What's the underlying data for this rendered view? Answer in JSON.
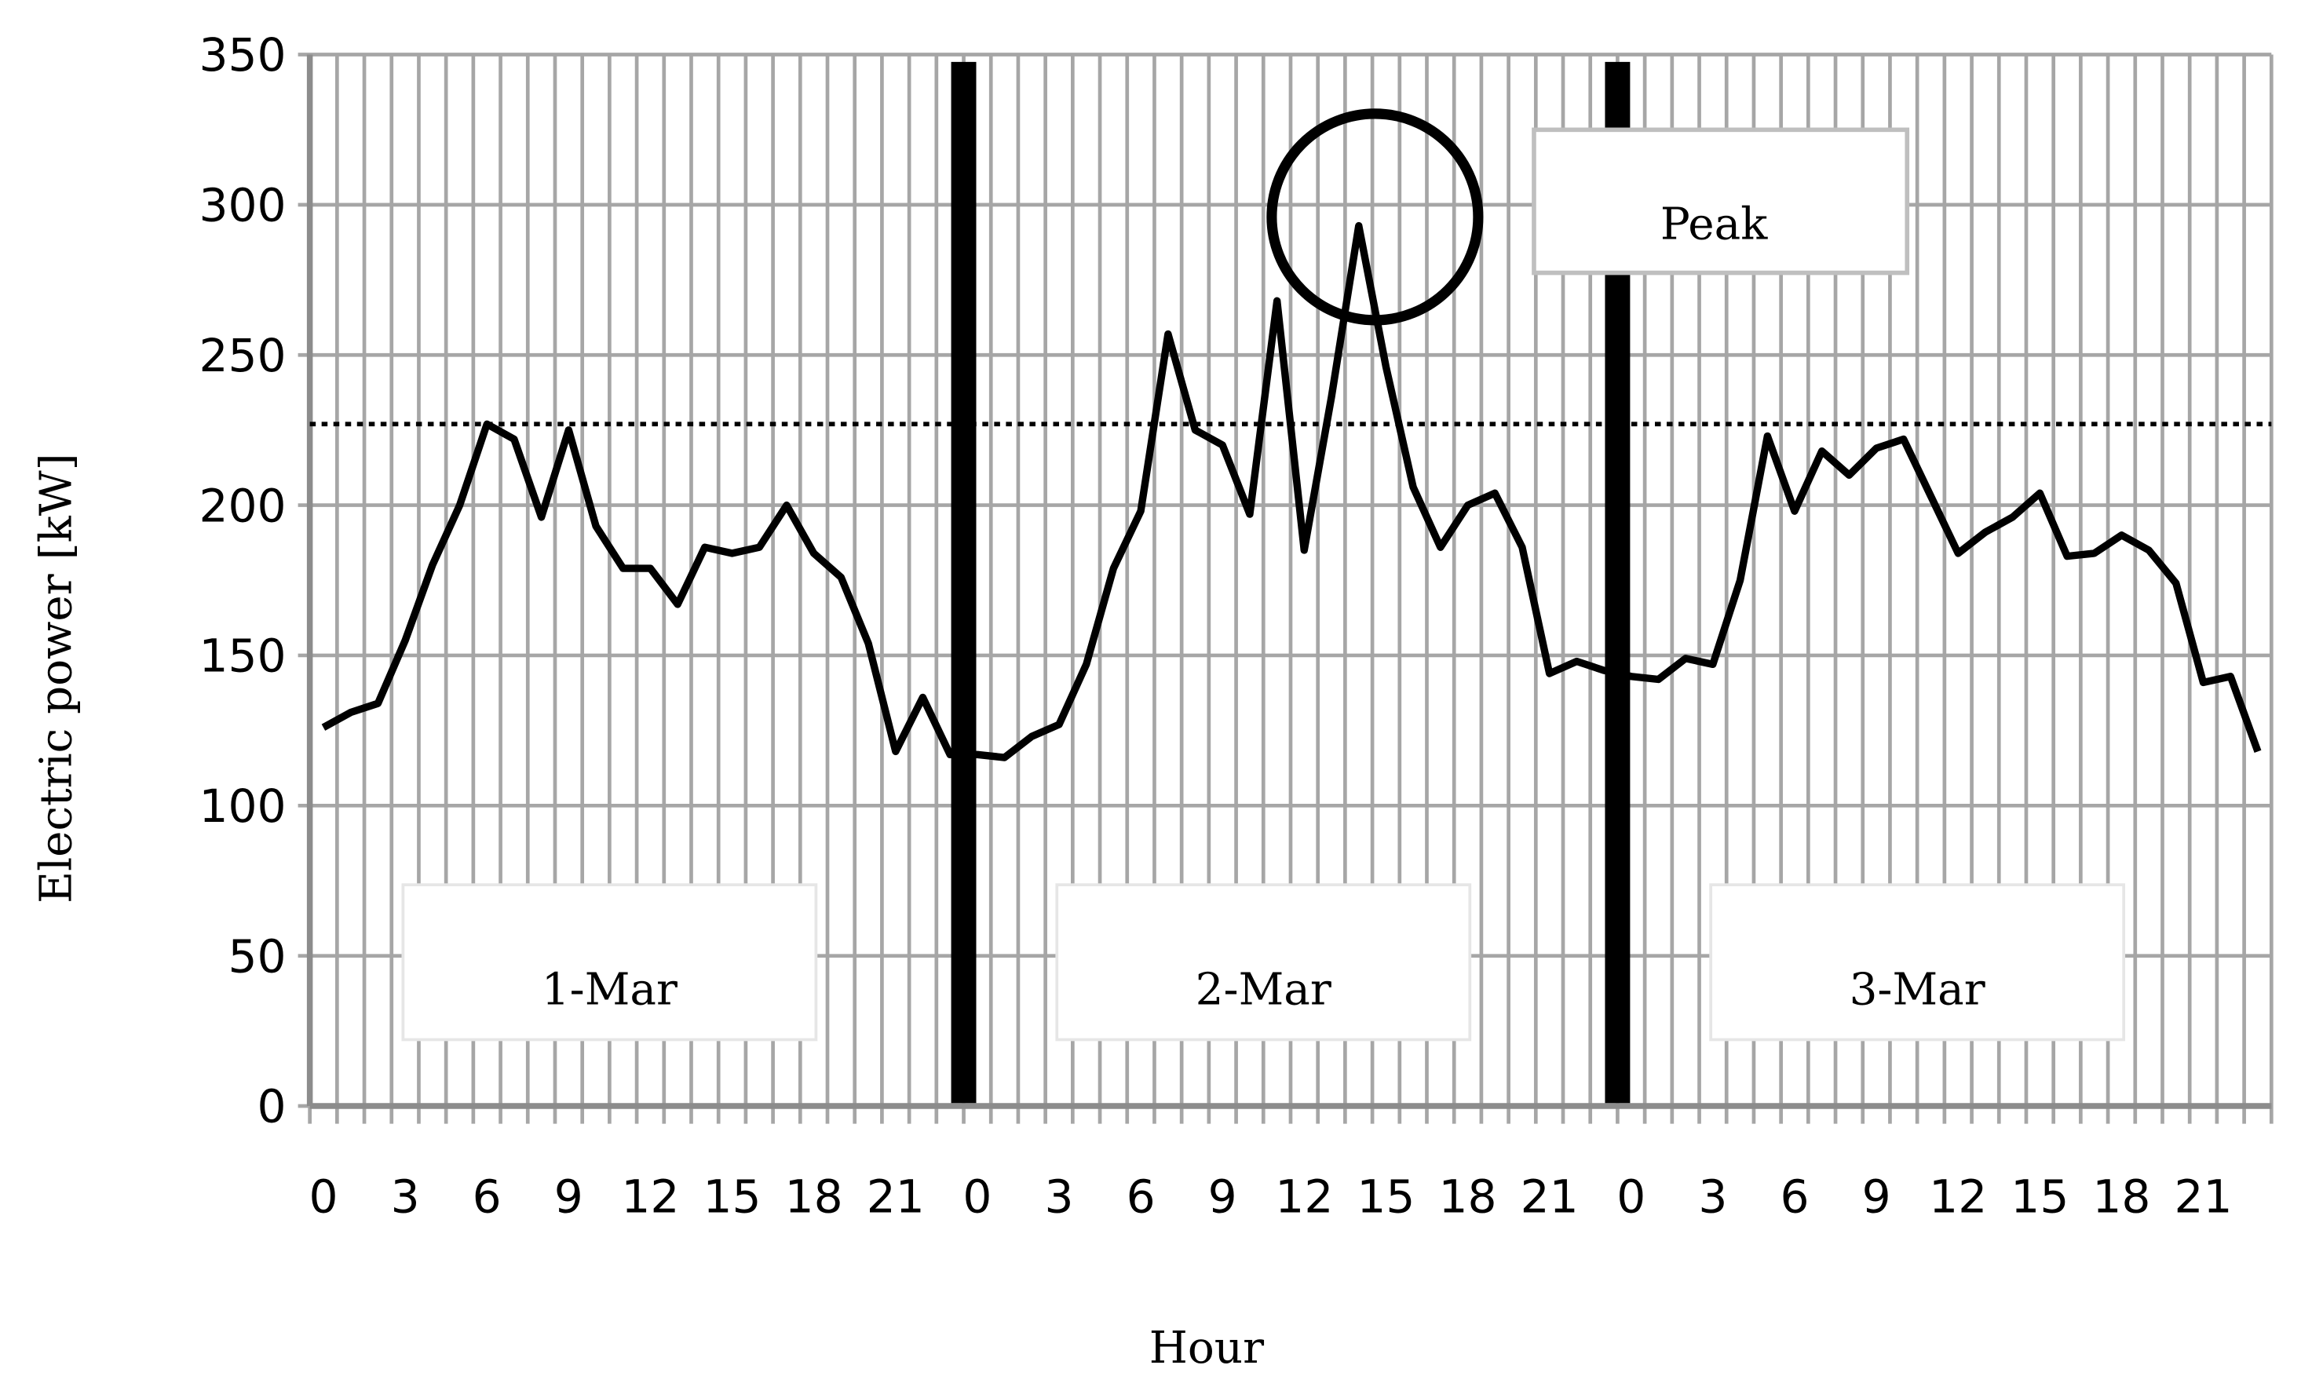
{
  "chart_data": {
    "type": "line",
    "title": "",
    "xlabel": "Hour",
    "ylabel": "Electric power [kW]",
    "ylim": [
      0,
      350
    ],
    "yticks": [
      0,
      50,
      100,
      150,
      200,
      250,
      300,
      350
    ],
    "xtick_labels": [
      "0",
      "3",
      "6",
      "9",
      "12",
      "15",
      "18",
      "21"
    ],
    "grid": true,
    "days": [
      "1-Mar",
      "2-Mar",
      "3-Mar"
    ],
    "series": [
      {
        "color": "#000000",
        "values": [
          126,
          131,
          134,
          155,
          180,
          200,
          227,
          222,
          196,
          225,
          193,
          179,
          179,
          167,
          186,
          184,
          186,
          200,
          184,
          176,
          154,
          118,
          136,
          117,
          117,
          116,
          123,
          127,
          147,
          179,
          198,
          257,
          225,
          220,
          197,
          268,
          185,
          236,
          293,
          246,
          206,
          186,
          200,
          204,
          186,
          144,
          148,
          145,
          143,
          142,
          149,
          147,
          175,
          223,
          198,
          218,
          210,
          219,
          222,
          203,
          184,
          191,
          196,
          204,
          183,
          184,
          190,
          185,
          174,
          141,
          143,
          118
        ]
      }
    ],
    "reference_line": {
      "value": 227,
      "style": "dotted"
    },
    "annotation": {
      "text": "Peak",
      "circled_point": {
        "day": "2-Mar",
        "hour": 14,
        "value": 293
      }
    }
  }
}
